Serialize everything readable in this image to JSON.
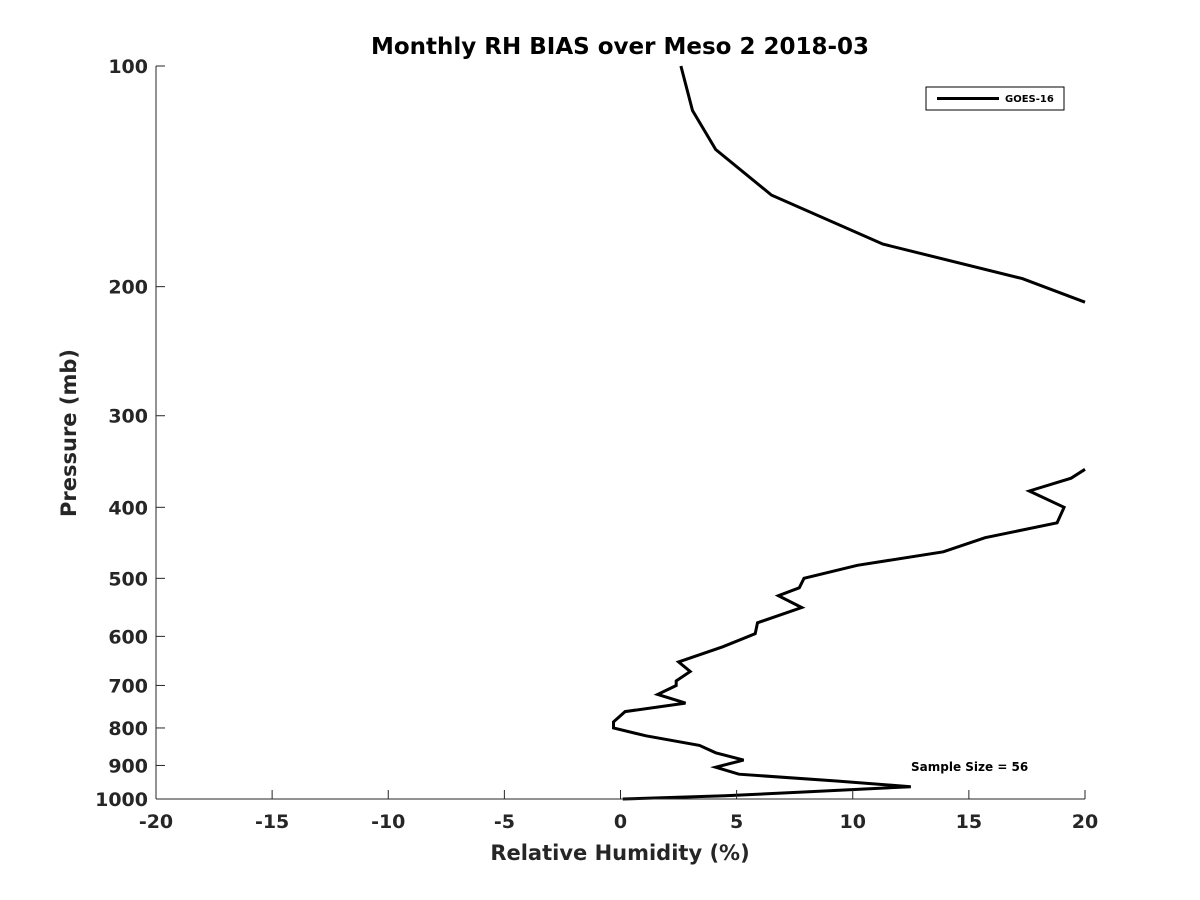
{
  "chart_data": {
    "type": "line",
    "title": "Monthly RH BIAS over Meso 2  2018-03",
    "xlabel": "Relative Humidity (%)",
    "ylabel": "Pressure (mb)",
    "xlim": [
      -20,
      20
    ],
    "ylim": [
      100,
      1000
    ],
    "y_scale": "log",
    "y_reversed": true,
    "grid": false,
    "legend_position": "top-right",
    "x_ticks": [
      "-20",
      "-15",
      "-10",
      "-5",
      "0",
      "5",
      "10",
      "15",
      "20"
    ],
    "y_ticks": [
      "100",
      "200",
      "300",
      "400",
      "500",
      "600",
      "700",
      "800",
      "900",
      "1000"
    ],
    "annotation": "Sample Size = 56",
    "series": [
      {
        "name": "GOES-16",
        "color": "#000000",
        "segments": [
          [
            [
              2.6,
              100
            ],
            [
              3.1,
              115
            ],
            [
              4.1,
              130
            ],
            [
              6.5,
              150
            ],
            [
              11.3,
              175
            ],
            [
              17.3,
              195
            ],
            [
              20.0,
              210
            ]
          ],
          [
            [
              20.0,
              355
            ],
            [
              19.4,
              365
            ],
            [
              17.6,
              380
            ],
            [
              19.1,
              400
            ],
            [
              18.8,
              420
            ],
            [
              15.7,
              440
            ],
            [
              13.9,
              460
            ],
            [
              10.2,
              480
            ],
            [
              7.9,
              500
            ],
            [
              7.7,
              515
            ],
            [
              6.8,
              528
            ],
            [
              7.8,
              548
            ],
            [
              5.9,
              575
            ],
            [
              5.8,
              595
            ],
            [
              4.4,
              620
            ],
            [
              2.5,
              650
            ],
            [
              3.0,
              670
            ],
            [
              2.4,
              690
            ],
            [
              2.4,
              700
            ],
            [
              1.6,
              720
            ],
            [
              2.8,
              740
            ],
            [
              0.2,
              760
            ],
            [
              -0.3,
              785
            ],
            [
              -0.3,
              800
            ],
            [
              1.1,
              820
            ],
            [
              3.4,
              845
            ],
            [
              4.1,
              865
            ],
            [
              5.3,
              885
            ],
            [
              4.1,
              905
            ],
            [
              5.1,
              925
            ],
            [
              9.3,
              945
            ],
            [
              12.5,
              962
            ],
            [
              8.0,
              978
            ],
            [
              4.5,
              990
            ],
            [
              0.1,
              1000
            ]
          ]
        ]
      }
    ]
  }
}
